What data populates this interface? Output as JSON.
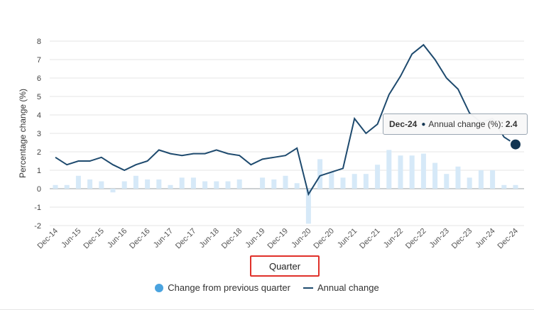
{
  "chart_data": {
    "type": "bar+line",
    "ylabel": "Percentage change (%)",
    "xlabel": "Quarter",
    "ylim": [
      -2,
      8
    ],
    "yticks": [
      -2,
      -1,
      0,
      1,
      2,
      3,
      4,
      5,
      6,
      7,
      8
    ],
    "grid": true,
    "legend_position": "bottom",
    "categories": [
      "Dec-14",
      "Mar-15",
      "Jun-15",
      "Sep-15",
      "Dec-15",
      "Mar-16",
      "Jun-16",
      "Sep-16",
      "Dec-16",
      "Mar-17",
      "Jun-17",
      "Sep-17",
      "Dec-17",
      "Mar-18",
      "Jun-18",
      "Sep-18",
      "Dec-18",
      "Mar-19",
      "Jun-19",
      "Sep-19",
      "Dec-19",
      "Mar-20",
      "Jun-20",
      "Sep-20",
      "Dec-20",
      "Mar-21",
      "Jun-21",
      "Sep-21",
      "Dec-21",
      "Mar-22",
      "Jun-22",
      "Sep-22",
      "Dec-22",
      "Mar-23",
      "Jun-23",
      "Sep-23",
      "Dec-23",
      "Mar-24",
      "Jun-24",
      "Sep-24",
      "Dec-24"
    ],
    "tick_labels": [
      "Dec-14",
      "Jun-15",
      "Dec-15",
      "Jun-16",
      "Dec-16",
      "Jun-17",
      "Dec-17",
      "Jun-18",
      "Dec-18",
      "Jun-19",
      "Dec-19",
      "Jun-20",
      "Dec-20",
      "Jun-21",
      "Dec-21",
      "Jun-22",
      "Dec-22",
      "Jun-23",
      "Dec-23",
      "Jun-24",
      "Dec-24"
    ],
    "series": [
      {
        "name": "Change from previous quarter",
        "kind": "bar",
        "color": "#d6e9f8",
        "values": [
          0.2,
          0.2,
          0.7,
          0.5,
          0.4,
          -0.2,
          0.4,
          0.7,
          0.5,
          0.5,
          0.2,
          0.6,
          0.6,
          0.4,
          0.4,
          0.4,
          0.5,
          0.0,
          0.6,
          0.5,
          0.7,
          0.3,
          -1.9,
          1.6,
          0.9,
          0.6,
          0.8,
          0.8,
          1.3,
          2.1,
          1.8,
          1.8,
          1.9,
          1.4,
          0.8,
          1.2,
          0.6,
          1.0,
          1.0,
          0.2,
          0.2
        ]
      },
      {
        "name": "Annual change",
        "kind": "line",
        "color": "#1e4a6e",
        "values": [
          1.7,
          1.3,
          1.5,
          1.5,
          1.7,
          1.3,
          1.0,
          1.3,
          1.5,
          2.1,
          1.9,
          1.8,
          1.9,
          1.9,
          2.1,
          1.9,
          1.8,
          1.3,
          1.6,
          1.7,
          1.8,
          2.2,
          -0.3,
          0.7,
          0.9,
          1.1,
          3.8,
          3.0,
          3.5,
          5.1,
          6.1,
          7.3,
          7.8,
          7.0,
          6.0,
          5.4,
          4.1,
          3.6,
          3.8,
          2.8,
          2.4
        ]
      }
    ],
    "tooltip": {
      "date": "Dec-24",
      "series_label": "Annual change (%):",
      "value": "2.4"
    }
  },
  "legend": {
    "bar_label": "Change from previous quarter",
    "line_label": "Annual change"
  }
}
